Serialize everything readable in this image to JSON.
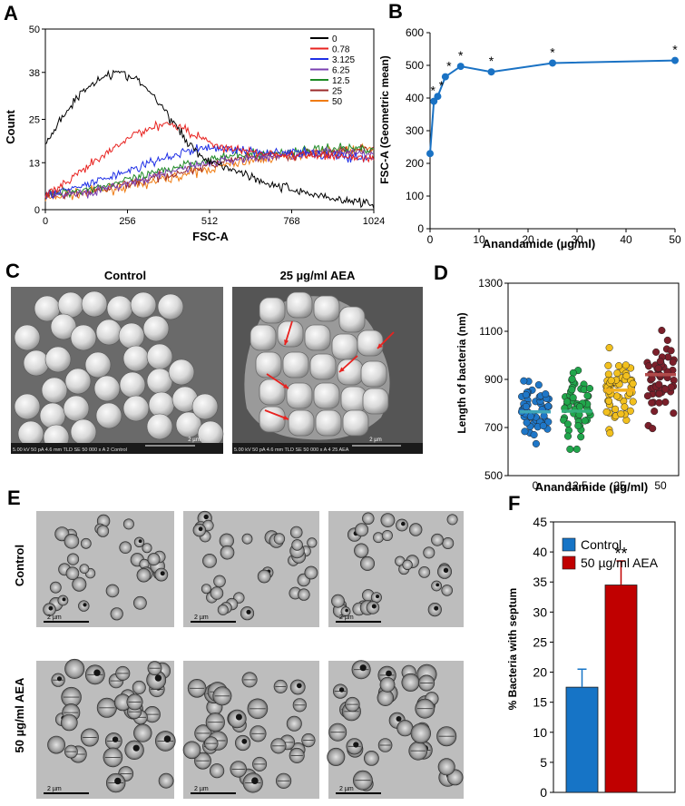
{
  "panels": {
    "A": {
      "letter": "A",
      "xlabel": "FSC-A",
      "ylabel": "Count",
      "xticks": [
        "0",
        "256",
        "512",
        "768",
        "1024"
      ],
      "yticks": [
        "0",
        "13",
        "25",
        "38",
        "50"
      ],
      "legend": [
        "0",
        "0.78",
        "3.125",
        "6.25",
        "12.5",
        "25",
        "50"
      ],
      "colors": [
        "#000000",
        "#e8221f",
        "#1f2fe6",
        "#7a3fb0",
        "#1e8a26",
        "#9b2a2a",
        "#f07c12"
      ]
    },
    "B": {
      "letter": "B",
      "xlabel": "Anandamide (µg/ml)",
      "ylabel": "FSC-A (Geometric mean)",
      "xticks": [
        "0",
        "10",
        "20",
        "30",
        "40",
        "50"
      ],
      "yticks": [
        "0",
        "100",
        "200",
        "300",
        "400",
        "500",
        "600"
      ],
      "star": "*"
    },
    "C": {
      "letter": "C",
      "left_title": "Control",
      "right_title": "25 µg/ml AEA",
      "left_footer": "5.00 kV  50 pA  4.6 mm  TLD  SE  50 000 x        A 2 Control",
      "right_footer": "5.00 kV  50 pA  4.6 mm  TLD  SE  50 000 x        A 4 25 AEA",
      "scale_label": "2 µm"
    },
    "D": {
      "letter": "D",
      "xlabel": "Anandamide (µg/ml)",
      "ylabel": "Length of bacteria (nm)",
      "xticks": [
        "0",
        "12.5",
        "25",
        "50"
      ],
      "yticks": [
        "500",
        "700",
        "900",
        "1100",
        "1300"
      ]
    },
    "E": {
      "letter": "E",
      "row1_label": "Control",
      "row2_label": "50 µg/ml AEA",
      "scale_label": "2 µm"
    },
    "F": {
      "letter": "F",
      "ylabel": "% Bacteria with septum",
      "yticks": [
        "0",
        "5",
        "10",
        "15",
        "20",
        "25",
        "30",
        "35",
        "40",
        "45"
      ],
      "legend": [
        "Control",
        "50 µg/ml AEA"
      ],
      "significance": "**"
    }
  },
  "chart_data": [
    {
      "type": "line",
      "panel": "A",
      "title": "",
      "xlabel": "FSC-A",
      "ylabel": "Count",
      "xlim": [
        0,
        1024
      ],
      "ylim": [
        0,
        50
      ],
      "series": [
        {
          "name": "0",
          "color": "#000000",
          "x": [
            0,
            40,
            80,
            130,
            180,
            220,
            260,
            300,
            350,
            400,
            450,
            500,
            560,
            620,
            700,
            800,
            900,
            1000,
            1024
          ],
          "y": [
            18,
            24,
            29,
            34,
            37,
            38,
            37,
            35,
            30,
            24,
            18,
            14,
            12,
            10,
            7,
            5,
            3,
            2,
            1
          ]
        },
        {
          "name": "0.78",
          "color": "#e8221f",
          "x": [
            0,
            60,
            120,
            200,
            280,
            340,
            380,
            420,
            480,
            560,
            640,
            760,
            900,
            1024
          ],
          "y": [
            4,
            7,
            11,
            16,
            21,
            23,
            24,
            23,
            20,
            17,
            16,
            15,
            15,
            14
          ]
        },
        {
          "name": "3.125",
          "color": "#1f2fe6",
          "x": [
            0,
            100,
            200,
            300,
            400,
            480,
            560,
            640,
            760,
            900,
            1024
          ],
          "y": [
            4,
            6,
            9,
            12,
            15,
            17,
            17,
            16,
            16,
            15,
            14
          ]
        },
        {
          "name": "6.25",
          "color": "#7a3fb0",
          "x": [
            0,
            150,
            300,
            450,
            600,
            750,
            900,
            1024
          ],
          "y": [
            4,
            5,
            8,
            12,
            14,
            15,
            16,
            16
          ]
        },
        {
          "name": "12.5",
          "color": "#1e8a26",
          "x": [
            0,
            150,
            300,
            450,
            600,
            750,
            900,
            1024
          ],
          "y": [
            4,
            6,
            9,
            13,
            15,
            16,
            17,
            17
          ]
        },
        {
          "name": "25",
          "color": "#9b2a2a",
          "x": [
            0,
            150,
            300,
            450,
            600,
            750,
            900,
            1024
          ],
          "y": [
            4,
            5,
            8,
            11,
            14,
            15,
            16,
            17
          ]
        },
        {
          "name": "50",
          "color": "#f07c12",
          "x": [
            0,
            150,
            300,
            450,
            600,
            750,
            900,
            1024
          ],
          "y": [
            3,
            5,
            7,
            10,
            13,
            15,
            16,
            17
          ]
        }
      ]
    },
    {
      "type": "line",
      "panel": "B",
      "title": "",
      "xlabel": "Anandamide (µg/ml)",
      "ylabel": "FSC-A (Geometric mean)",
      "xlim": [
        0,
        50
      ],
      "ylim": [
        0,
        600
      ],
      "color": "#1a72c4",
      "x": [
        0,
        0.78,
        1.56,
        3.125,
        6.25,
        12.5,
        25,
        50
      ],
      "y": [
        230,
        390,
        405,
        465,
        497,
        480,
        507,
        515
      ],
      "significant": [
        false,
        true,
        true,
        true,
        true,
        true,
        true,
        true
      ]
    },
    {
      "type": "scatter",
      "panel": "D",
      "title": "",
      "xlabel": "Anandamide (µg/ml)",
      "ylabel": "Length of bacteria (nm)",
      "ylim": [
        500,
        1300
      ],
      "categories": [
        "0",
        "12.5",
        "25",
        "50"
      ],
      "colors": [
        "#1f77c8",
        "#21a64b",
        "#f2c01e",
        "#7b1f2a"
      ],
      "means": [
        765,
        768,
        855,
        920
      ],
      "mean_colors": [
        "#3ea6b8",
        "#35b07a",
        "#f2b01e",
        "#b04a4a"
      ]
    },
    {
      "type": "bar",
      "panel": "F",
      "title": "",
      "xlabel": "",
      "ylabel": "% Bacteria with septum",
      "ylim": [
        0,
        45
      ],
      "categories": [
        "Control",
        "50 µg/ml AEA"
      ],
      "values": [
        17.5,
        34.5
      ],
      "errors": [
        3,
        4
      ],
      "colors": [
        "#1674c6",
        "#c00000"
      ]
    }
  ]
}
